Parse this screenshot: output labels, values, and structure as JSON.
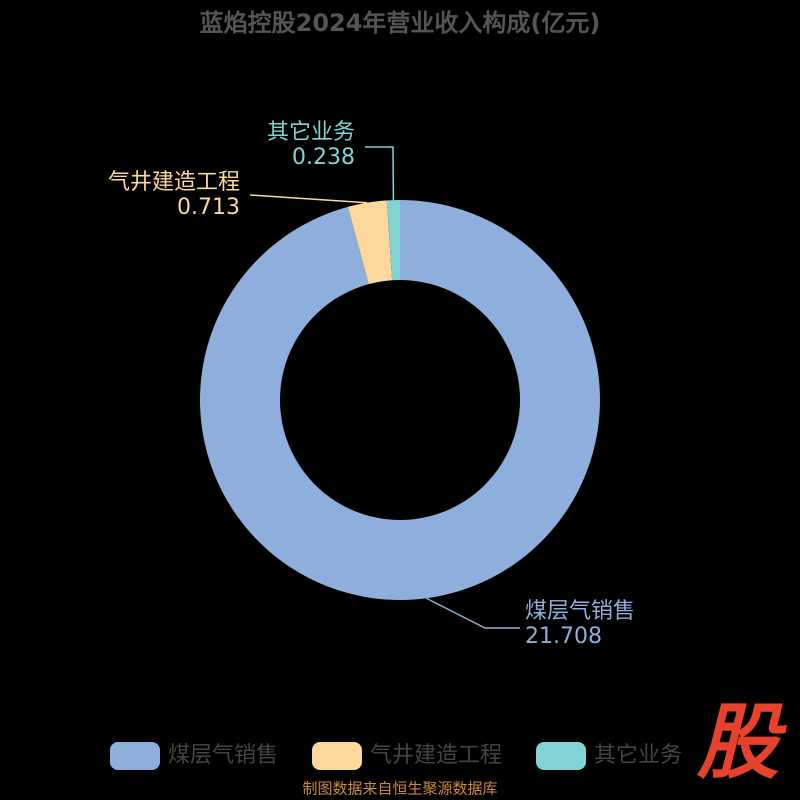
{
  "chart_data": {
    "type": "donut",
    "title": "蓝焰控股2024年营业收入构成(亿元)",
    "categories": [
      "煤层气销售",
      "气井建造工程",
      "其它业务"
    ],
    "values": [
      21.708,
      0.713,
      0.238
    ],
    "colors": [
      "#8eafdc",
      "#fdd89b",
      "#80d4d4"
    ],
    "source": "制图数据来自恒生聚源数据库",
    "logo": "股"
  }
}
